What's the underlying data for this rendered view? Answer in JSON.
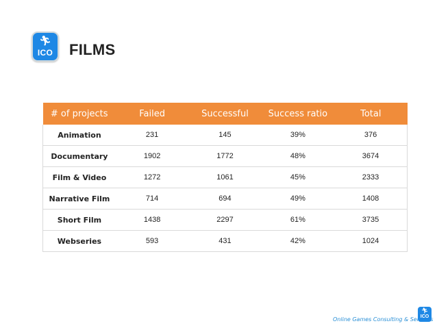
{
  "brand": {
    "logo_text": "ICO",
    "runner_icon": "runner-icon",
    "accent": "#1e88e5"
  },
  "header": {
    "title": "FILMS"
  },
  "table": {
    "header_color": "#f08c3a",
    "columns": [
      "# of projects",
      "Failed",
      "Successful",
      "Success ratio",
      "Total"
    ],
    "rows": [
      {
        "label": "Animation",
        "failed": "231",
        "successful": "145",
        "ratio": "39%",
        "total": "376"
      },
      {
        "label": "Documentary",
        "failed": "1902",
        "successful": "1772",
        "ratio": "48%",
        "total": "3674"
      },
      {
        "label": "Film & Video",
        "failed": "1272",
        "successful": "1061",
        "ratio": "45%",
        "total": "2333"
      },
      {
        "label": "Narrative Film",
        "failed": "714",
        "successful": "694",
        "ratio": "49%",
        "total": "1408"
      },
      {
        "label": "Short Film",
        "failed": "1438",
        "successful": "2297",
        "ratio": "61%",
        "total": "3735"
      },
      {
        "label": "Webseries",
        "failed": "593",
        "successful": "431",
        "ratio": "42%",
        "total": "1024"
      }
    ]
  },
  "footer": {
    "text": "Online Games Consulting & Services"
  }
}
